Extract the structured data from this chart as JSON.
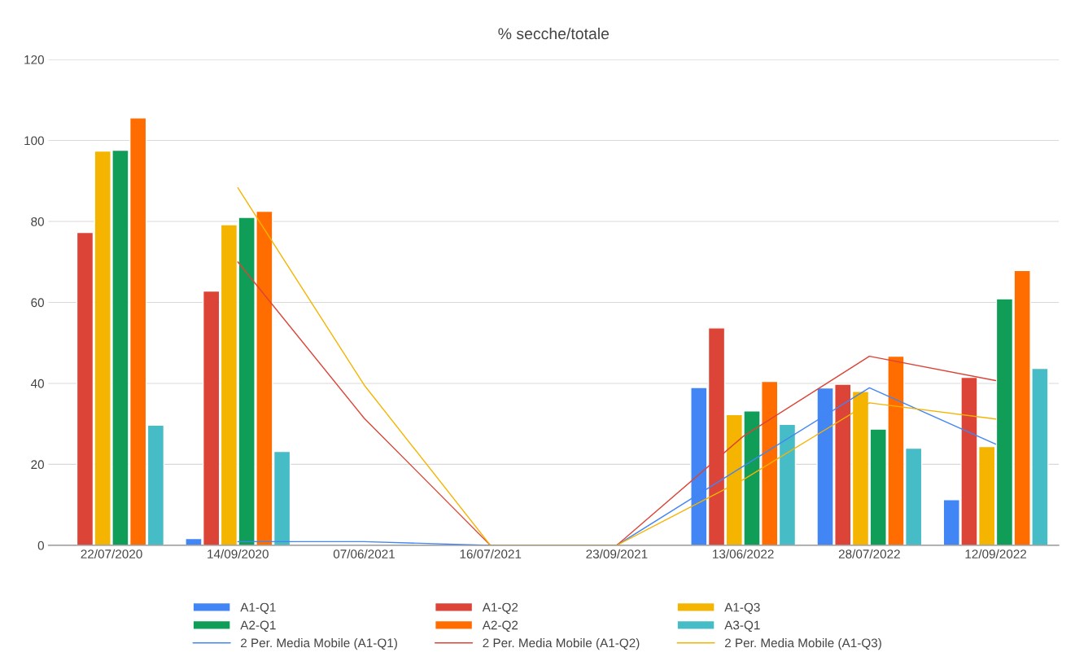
{
  "chart_data": {
    "type": "bar",
    "title": "% secche/totale",
    "categories": [
      "22/07/2020",
      "14/09/2020",
      "07/06/2021",
      "16/07/2021",
      "23/09/2021",
      "13/06/2022",
      "28/07/2022",
      "12/09/2022"
    ],
    "series": [
      {
        "name": "A1-Q1",
        "color": "#4285f4",
        "values": [
          null,
          1.7,
          null,
          null,
          null,
          39,
          38.9,
          11.3
        ]
      },
      {
        "name": "A1-Q2",
        "color": "#db4437",
        "values": [
          77.3,
          62.8,
          null,
          null,
          null,
          53.7,
          39.8,
          41.5
        ]
      },
      {
        "name": "A1-Q3",
        "color": "#f4b400",
        "values": [
          97.4,
          79.2,
          null,
          null,
          null,
          32.3,
          38,
          24.4
        ]
      },
      {
        "name": "A2-Q1",
        "color": "#0f9d58",
        "values": [
          97.6,
          81,
          null,
          null,
          null,
          33.2,
          28.7,
          60.9
        ]
      },
      {
        "name": "A2-Q2",
        "color": "#ff6d01",
        "values": [
          105.6,
          82.5,
          null,
          null,
          null,
          40.5,
          46.7,
          67.9
        ]
      },
      {
        "name": "A3-Q1",
        "color": "#46bdc6",
        "values": [
          29.7,
          23.2,
          null,
          null,
          null,
          29.9,
          24,
          43.7
        ]
      },
      {
        "name": "2 Per. Media Mobile (A1-Q1)",
        "type": "line",
        "color": "#4285f4",
        "values": [
          null,
          0.9,
          0.9,
          0,
          0,
          19.5,
          38.9,
          25
        ]
      },
      {
        "name": "2 Per. Media Mobile (A1-Q2)",
        "type": "line",
        "color": "#db4437",
        "values": [
          null,
          70,
          31.4,
          0,
          0,
          26.9,
          46.7,
          40.7
        ]
      },
      {
        "name": "2 Per. Media Mobile (A1-Q3)",
        "type": "line",
        "color": "#f4b400",
        "values": [
          null,
          88.3,
          39.6,
          0,
          0,
          16.2,
          35.2,
          31.2
        ]
      }
    ],
    "ylim": [
      0,
      120
    ],
    "yticks": [
      0,
      20,
      40,
      60,
      80,
      100,
      120
    ],
    "grid": "y",
    "legend": "bottom"
  }
}
